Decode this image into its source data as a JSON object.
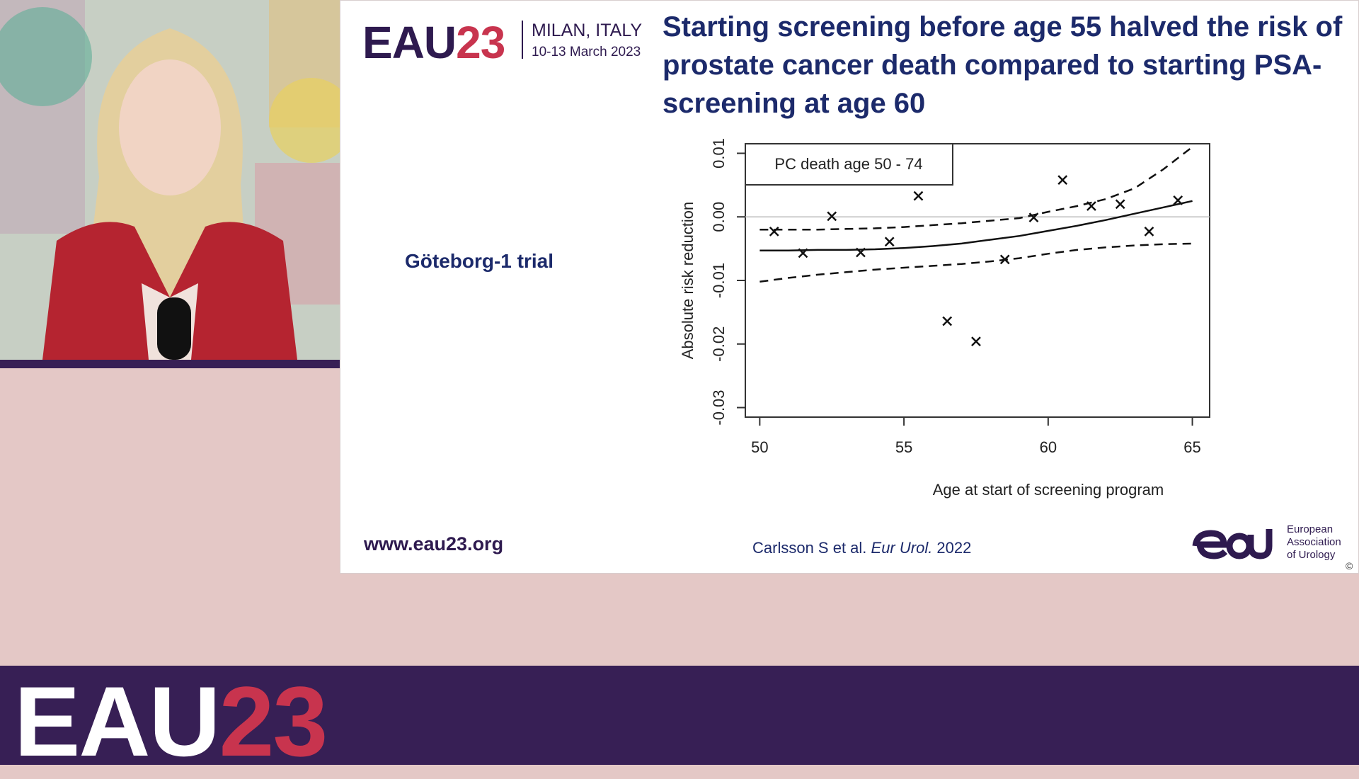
{
  "slide": {
    "logo_main": "EAU",
    "logo_num": "23",
    "logo_city": "MILAN, ITALY",
    "logo_dates": "10-13 March 2023",
    "title": "Starting screening before age 55 halved the risk of prostate cancer death compared to starting PSA-screening at age 60",
    "trial_label": "Göteborg-1 trial",
    "website": "www.eau23.org",
    "citation_authors": "Carlsson S et al. ",
    "citation_journal": "Eur Urol.",
    "citation_year": " 2022",
    "org_line1": "European",
    "org_line2": "Association",
    "org_line3": "of Urology",
    "copyright": "©"
  },
  "banner": {
    "logo_main": "EAU",
    "logo_num": "23"
  },
  "colors": {
    "accent": "#c8344e",
    "brand": "#371f55",
    "title": "#1c2a6b"
  },
  "chart_data": {
    "type": "scatter",
    "title": "",
    "legend_box": "PC death age 50 - 74",
    "xlabel": "Age at start of screening program",
    "ylabel": "Absolute risk reduction",
    "xlim": [
      49.5,
      65.6
    ],
    "ylim": [
      -0.0315,
      0.0115
    ],
    "xticks": [
      50,
      55,
      60,
      65
    ],
    "yticks": [
      -0.03,
      -0.02,
      -0.01,
      0.0,
      0.01
    ],
    "ytick_labels": [
      "-0.03",
      "-0.02",
      "-0.01",
      "0.00",
      "0.01"
    ],
    "reference_line_y": 0.0,
    "points": [
      {
        "x": 50.5,
        "y": -0.0023
      },
      {
        "x": 51.5,
        "y": -0.0057
      },
      {
        "x": 52.5,
        "y": 0.0001
      },
      {
        "x": 53.5,
        "y": -0.0056
      },
      {
        "x": 54.5,
        "y": -0.0039
      },
      {
        "x": 55.5,
        "y": 0.0033
      },
      {
        "x": 56.5,
        "y": -0.0164
      },
      {
        "x": 57.5,
        "y": -0.0196
      },
      {
        "x": 58.5,
        "y": -0.0067
      },
      {
        "x": 59.5,
        "y": -0.0001
      },
      {
        "x": 60.5,
        "y": 0.0058
      },
      {
        "x": 61.5,
        "y": 0.0017
      },
      {
        "x": 62.5,
        "y": 0.002
      },
      {
        "x": 63.5,
        "y": -0.0023
      },
      {
        "x": 64.5,
        "y": 0.0026
      }
    ],
    "series": [
      {
        "style": "solid",
        "x": [
          50,
          51,
          52,
          53,
          54,
          55,
          56,
          57,
          58,
          59,
          60,
          61,
          62,
          63,
          64,
          65
        ],
        "y": [
          -0.0053,
          -0.0053,
          -0.0052,
          -0.0052,
          -0.0051,
          -0.0049,
          -0.0046,
          -0.0042,
          -0.0036,
          -0.003,
          -0.0022,
          -0.0014,
          -0.0005,
          0.0005,
          0.0015,
          0.0025
        ]
      },
      {
        "style": "dashed",
        "x": [
          50,
          51,
          52,
          53,
          54,
          55,
          56,
          57,
          58,
          59,
          60,
          61,
          62,
          63,
          64,
          65
        ],
        "y": [
          -0.002,
          -0.002,
          -0.002,
          -0.0019,
          -0.0018,
          -0.0016,
          -0.0013,
          -0.001,
          -0.0006,
          -0.0002,
          0.0008,
          0.0017,
          0.0028,
          0.0045,
          0.0075,
          0.011
        ]
      },
      {
        "style": "dashed",
        "x": [
          50,
          51,
          52,
          53,
          54,
          55,
          56,
          57,
          58,
          59,
          60,
          61,
          62,
          63,
          64,
          65
        ],
        "y": [
          -0.0102,
          -0.0096,
          -0.0091,
          -0.0087,
          -0.0083,
          -0.008,
          -0.0077,
          -0.0074,
          -0.007,
          -0.0065,
          -0.0058,
          -0.0052,
          -0.0048,
          -0.0045,
          -0.0043,
          -0.0042
        ]
      }
    ],
    "grid": false
  }
}
